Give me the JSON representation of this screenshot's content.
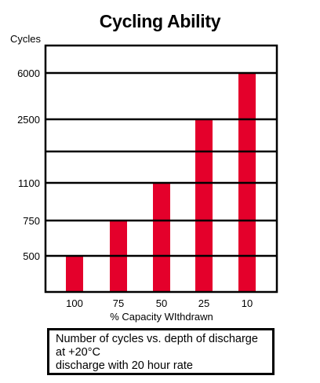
{
  "chart_data": {
    "type": "bar",
    "title": "Cycling Ability",
    "ylabel": "Cycles",
    "xlabel": "% Capacity WIthdrawn",
    "categories": [
      "100",
      "75",
      "50",
      "25",
      "10"
    ],
    "values": [
      500,
      750,
      1100,
      2500,
      6000
    ],
    "y_ticks": [
      "500",
      "750",
      "1100",
      "2500",
      "6000"
    ],
    "y_scale": "nonlinear (ticks at 500, 750, 1100, 2500, 6000)",
    "grid": true,
    "bar_color": "#e4002b"
  },
  "caption": {
    "line1": "Number of cycles vs. depth of discharge",
    "line2": "at +20°C",
    "line3": "discharge with 20 hour rate"
  }
}
